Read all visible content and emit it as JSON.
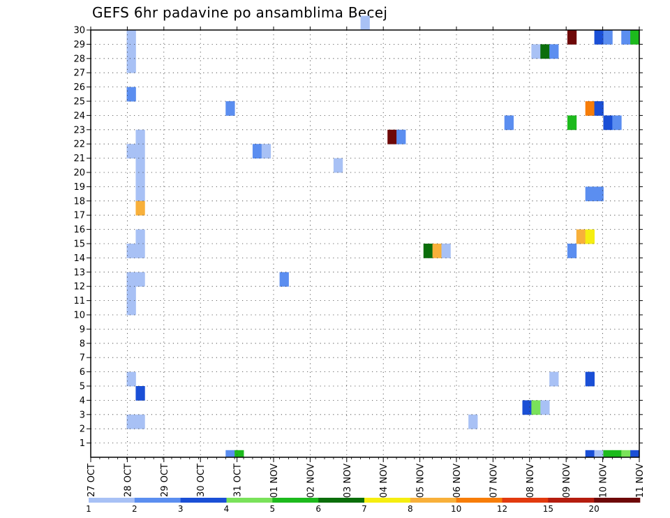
{
  "title": "GEFS 6hr padavine po ansamblima Becej",
  "chart_data": {
    "type": "heatmap",
    "title": "GEFS 6hr padavine po ansamblima Becej",
    "xlabel": "",
    "ylabel": "",
    "x_tick_labels": [
      "27 OCT",
      "28 OCT",
      "29 OCT",
      "30 OCT",
      "31 OCT",
      "01 NOV",
      "02 NOV",
      "03 NOV",
      "04 NOV",
      "05 NOV",
      "06 NOV",
      "07 NOV",
      "08 NOV",
      "09 NOV",
      "10 NOV",
      "11 NOV"
    ],
    "y_tick_labels": [
      "1",
      "2",
      "3",
      "4",
      "5",
      "6",
      "7",
      "8",
      "9",
      "10",
      "11",
      "12",
      "13",
      "14",
      "15",
      "16",
      "17",
      "18",
      "19",
      "20",
      "21",
      "22",
      "23",
      "24",
      "25",
      "26",
      "27",
      "28",
      "29",
      "30"
    ],
    "ylim": [
      0,
      30
    ],
    "grid": true,
    "colorbar": {
      "labels": [
        "1",
        "2",
        "3",
        "4",
        "5",
        "6",
        "7",
        "8",
        "10",
        "12",
        "15",
        "20"
      ],
      "colors": [
        "#a8c1f5",
        "#5b8ef0",
        "#1a4fd6",
        "#7ae25a",
        "#1dba1d",
        "#0b6e0b",
        "#f5ee10",
        "#f8b03a",
        "#f77d08",
        "#e23a0f",
        "#b51d0f",
        "#6e0808"
      ]
    },
    "cells_note": "x = forecast step index (6-hour steps from 27 OCT 00Z), y = ensemble member; level = colorbar bin index (0 = 1-2, 1 = 2-3, 2 = 3-4, 3 = 4-5, 4 = 5-6, 5 = 6-7, 6 = 7-8, 7 = 8-10, 8 = 10-12, 9 = 12-15, 10 = 15-20, 11 = >20)",
    "cells": [
      {
        "x": 4,
        "y": 29,
        "level": 0
      },
      {
        "x": 4,
        "y": 28,
        "level": 0
      },
      {
        "x": 4,
        "y": 27,
        "level": 0
      },
      {
        "x": 4,
        "y": 25,
        "level": 1
      },
      {
        "x": 4,
        "y": 21,
        "level": 0
      },
      {
        "x": 5,
        "y": 22,
        "level": 0
      },
      {
        "x": 5,
        "y": 21,
        "level": 0
      },
      {
        "x": 5,
        "y": 20,
        "level": 0
      },
      {
        "x": 5,
        "y": 19,
        "level": 0
      },
      {
        "x": 5,
        "y": 18,
        "level": 0
      },
      {
        "x": 5,
        "y": 17,
        "level": 7
      },
      {
        "x": 5,
        "y": 15,
        "level": 0
      },
      {
        "x": 4,
        "y": 14,
        "level": 0
      },
      {
        "x": 5,
        "y": 14,
        "level": 0
      },
      {
        "x": 4,
        "y": 12,
        "level": 0
      },
      {
        "x": 5,
        "y": 12,
        "level": 0
      },
      {
        "x": 4,
        "y": 11,
        "level": 0
      },
      {
        "x": 4,
        "y": 10,
        "level": 0
      },
      {
        "x": 4,
        "y": 5,
        "level": 0
      },
      {
        "x": 5,
        "y": 4,
        "level": 2
      },
      {
        "x": 4,
        "y": 2,
        "level": 0
      },
      {
        "x": 5,
        "y": 2,
        "level": 0
      },
      {
        "x": 15,
        "y": 0,
        "level": 1
      },
      {
        "x": 16,
        "y": 0,
        "level": 4
      },
      {
        "x": 15,
        "y": 24,
        "level": 1
      },
      {
        "x": 18,
        "y": 21,
        "level": 1
      },
      {
        "x": 19,
        "y": 21,
        "level": 0
      },
      {
        "x": 21,
        "y": 12,
        "level": 1
      },
      {
        "x": 27,
        "y": 20,
        "level": 0
      },
      {
        "x": 30,
        "y": 30,
        "level": 0
      },
      {
        "x": 33,
        "y": 22,
        "level": 11
      },
      {
        "x": 34,
        "y": 22,
        "level": 1
      },
      {
        "x": 37,
        "y": 14,
        "level": 5
      },
      {
        "x": 38,
        "y": 14,
        "level": 7
      },
      {
        "x": 39,
        "y": 14,
        "level": 0
      },
      {
        "x": 42,
        "y": 2,
        "level": 0
      },
      {
        "x": 46,
        "y": 23,
        "level": 1
      },
      {
        "x": 48,
        "y": 3,
        "level": 2
      },
      {
        "x": 49,
        "y": 3,
        "level": 3
      },
      {
        "x": 50,
        "y": 3,
        "level": 0
      },
      {
        "x": 49,
        "y": 28,
        "level": 0
      },
      {
        "x": 50,
        "y": 28,
        "level": 5
      },
      {
        "x": 51,
        "y": 28,
        "level": 1
      },
      {
        "x": 51,
        "y": 5,
        "level": 0
      },
      {
        "x": 53,
        "y": 29,
        "level": 11
      },
      {
        "x": 53,
        "y": 23,
        "level": 4
      },
      {
        "x": 53,
        "y": 14,
        "level": 1
      },
      {
        "x": 54,
        "y": 15,
        "level": 7
      },
      {
        "x": 55,
        "y": 15,
        "level": 6
      },
      {
        "x": 55,
        "y": 24,
        "level": 8
      },
      {
        "x": 56,
        "y": 24,
        "level": 2
      },
      {
        "x": 55,
        "y": 18,
        "level": 1
      },
      {
        "x": 56,
        "y": 18,
        "level": 1
      },
      {
        "x": 55,
        "y": 5,
        "level": 2
      },
      {
        "x": 56,
        "y": 29,
        "level": 2
      },
      {
        "x": 57,
        "y": 29,
        "level": 1
      },
      {
        "x": 59,
        "y": 29,
        "level": 1
      },
      {
        "x": 60,
        "y": 29,
        "level": 4
      },
      {
        "x": 57,
        "y": 23,
        "level": 2
      },
      {
        "x": 58,
        "y": 23,
        "level": 1
      },
      {
        "x": 55,
        "y": 0,
        "level": 2
      },
      {
        "x": 56,
        "y": 0,
        "level": 0
      },
      {
        "x": 57,
        "y": 0,
        "level": 4
      },
      {
        "x": 58,
        "y": 0,
        "level": 4
      },
      {
        "x": 59,
        "y": 0,
        "level": 3
      },
      {
        "x": 60,
        "y": 0,
        "level": 2
      }
    ]
  }
}
